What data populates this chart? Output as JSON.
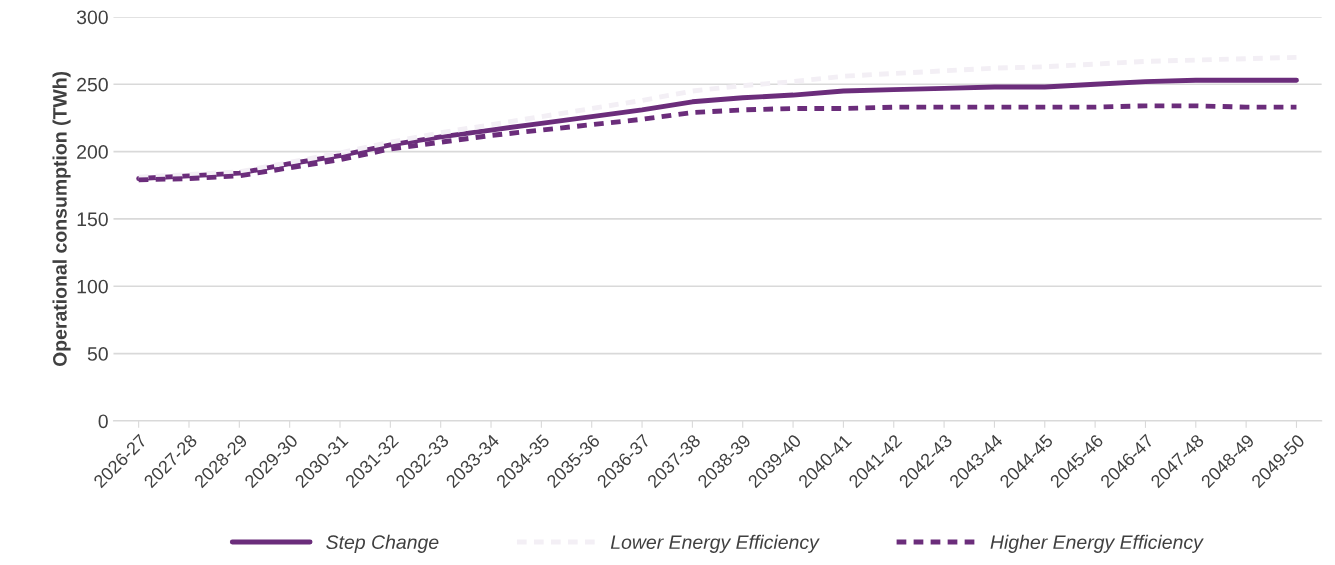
{
  "chart_data": {
    "type": "line",
    "ylabel": "Operational consumption (TWh)",
    "categories": [
      "2026-27",
      "2027-28",
      "2028-29",
      "2029-30",
      "2030-31",
      "2031-32",
      "2032-33",
      "2033-34",
      "2034-35",
      "2035-36",
      "2036-37",
      "2037-38",
      "2038-39",
      "2039-40",
      "2040-41",
      "2041-42",
      "2042-43",
      "2043-44",
      "2044-45",
      "2045-46",
      "2046-47",
      "2047-48",
      "2048-49",
      "2049-50"
    ],
    "series": [
      {
        "name": "Step Change",
        "color": "#6b2d7b",
        "line_style": "solid",
        "values": [
          180,
          182,
          184,
          191,
          197,
          205,
          211,
          216,
          221,
          226,
          231,
          237,
          240,
          242,
          245,
          246,
          247,
          248,
          248,
          250,
          252,
          253,
          253,
          253
        ]
      },
      {
        "name": "Lower Energy Efficiency",
        "color": "#f3eff5",
        "line_style": "dashed",
        "values": [
          181,
          183,
          185,
          192,
          199,
          207,
          214,
          220,
          226,
          232,
          238,
          245,
          249,
          252,
          256,
          258,
          260,
          262,
          263,
          265,
          267,
          268,
          269,
          270
        ]
      },
      {
        "name": "Higher Energy Efficiency",
        "color": "#6b2d7b",
        "line_style": "dashed",
        "values": [
          179,
          180,
          182,
          188,
          194,
          202,
          207,
          212,
          216,
          220,
          224,
          229,
          231,
          232,
          232,
          233,
          233,
          233,
          233,
          233,
          234,
          234,
          233,
          233
        ]
      }
    ],
    "ylim": [
      0,
      300
    ],
    "yticks": [
      0,
      50,
      100,
      150,
      200,
      250,
      300
    ],
    "grid": "y",
    "legend": "bottom",
    "marker": "none"
  }
}
